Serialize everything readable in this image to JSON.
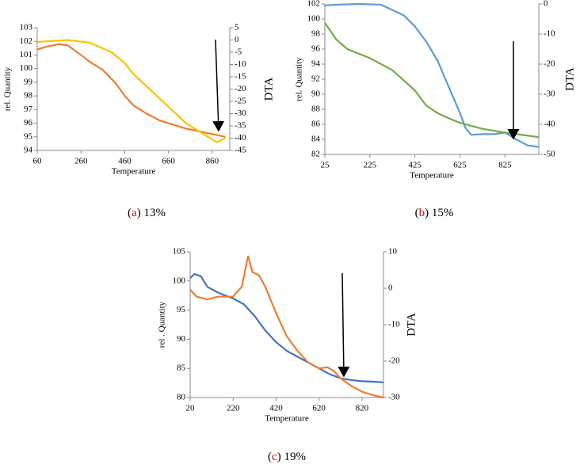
{
  "chart_data": [
    {
      "type": "line",
      "caption": [
        "(",
        "a",
        ") 13%"
      ],
      "xlabel": "Temperature",
      "ylabel": "rel. Quantity",
      "y2label": "DTA",
      "xlim": [
        60,
        940
      ],
      "xticks": [
        60,
        260,
        460,
        660,
        860
      ],
      "ylim": [
        94,
        103
      ],
      "yticks": [
        94,
        95,
        96,
        97,
        98,
        99,
        100,
        101,
        102,
        103
      ],
      "y2lim": [
        -45,
        5
      ],
      "y2ticks": [
        5,
        0,
        -5,
        -10,
        -15,
        -20,
        -25,
        -30,
        -35,
        -40,
        -45
      ],
      "series": [
        {
          "color": "#ed7d31",
          "x": [
            60,
            100,
            160,
            200,
            260,
            300,
            360,
            420,
            460,
            500,
            560,
            620,
            680,
            740,
            800,
            860,
            920
          ],
          "values": [
            101.4,
            101.6,
            101.8,
            101.7,
            101.0,
            100.5,
            99.9,
            98.9,
            98.0,
            97.3,
            96.7,
            96.2,
            95.9,
            95.6,
            95.4,
            95.2,
            95.0
          ]
        },
        {
          "color": "#ffc000",
          "axis": "y2",
          "x": [
            60,
            200,
            300,
            400,
            460,
            500,
            560,
            660,
            740,
            880,
            920
          ],
          "values": [
            -0.8,
            0,
            -1.1,
            -5,
            -9.4,
            -13.9,
            -18.9,
            -27.2,
            -33.9,
            -41.7,
            -40
          ]
        }
      ]
    },
    {
      "type": "line",
      "caption": [
        "(",
        "b",
        ") 15%"
      ],
      "xlabel": "Temperature",
      "ylabel": "rel. Quantity",
      "y2label": "DTA",
      "xlim": [
        25,
        975
      ],
      "xticks": [
        25,
        225,
        425,
        625,
        825
      ],
      "ylim": [
        82,
        102
      ],
      "yticks": [
        82,
        84,
        86,
        88,
        90,
        92,
        94,
        96,
        98,
        100,
        102
      ],
      "y2lim": [
        -50,
        0
      ],
      "y2ticks": [
        0,
        -10,
        -20,
        -30,
        -40,
        -50
      ],
      "series": [
        {
          "color": "#5b9bd5",
          "x": [
            25,
            75,
            175,
            275,
            375,
            425,
            475,
            525,
            575,
            625,
            650,
            675,
            725,
            775,
            825,
            875,
            925,
            975
          ],
          "values": [
            101.8,
            101.9,
            102,
            101.9,
            100.5,
            99,
            97,
            94.5,
            91,
            87.5,
            85.5,
            84.6,
            84.7,
            84.7,
            84.9,
            84,
            83.2,
            83
          ]
        },
        {
          "color": "#70ad47",
          "axis": "y2",
          "x": [
            25,
            75,
            125,
            225,
            325,
            425,
            475,
            525,
            575,
            625,
            725,
            825,
            925,
            975
          ],
          "values": [
            -6.25,
            -11.75,
            -15,
            -18,
            -22,
            -28.75,
            -33.75,
            -36.25,
            -38,
            -39.5,
            -41.5,
            -42.75,
            -43.75,
            -44.25
          ]
        }
      ]
    },
    {
      "type": "line",
      "caption": [
        "(",
        "c",
        ") 19%"
      ],
      "xlabel": "Temperature",
      "ylabel": "rel . Quantity",
      "y2label": "DTA",
      "xlim": [
        20,
        920
      ],
      "xticks": [
        20,
        220,
        420,
        620,
        820
      ],
      "ylim": [
        80,
        105
      ],
      "yticks": [
        80,
        85,
        90,
        95,
        100,
        105
      ],
      "y2lim": [
        -30,
        10
      ],
      "y2ticks": [
        10,
        0,
        -10,
        -20,
        -30
      ],
      "series": [
        {
          "color": "#4472c4",
          "x": [
            20,
            40,
            70,
            100,
            150,
            220,
            270,
            320,
            370,
            420,
            470,
            520,
            570,
            620,
            670,
            720,
            770,
            820,
            880,
            920
          ],
          "values": [
            100.5,
            101.2,
            100.8,
            99,
            98,
            97,
            96,
            94,
            91.5,
            89.5,
            88,
            87,
            86,
            85,
            84,
            83.3,
            83,
            82.8,
            82.7,
            82.6
          ]
        },
        {
          "color": "#ed7d31",
          "axis": "y2",
          "x": [
            20,
            50,
            100,
            150,
            220,
            260,
            290,
            310,
            340,
            370,
            420,
            470,
            520,
            570,
            620,
            660,
            690,
            720,
            770,
            820,
            880,
            920
          ],
          "values": [
            -0.4,
            -2.3,
            -3.1,
            -2.3,
            -2.3,
            0.4,
            8.9,
            4.4,
            3.6,
            0.4,
            -6.8,
            -13.2,
            -17.2,
            -20.4,
            -22,
            -21.7,
            -22.8,
            -24.7,
            -26.8,
            -28.4,
            -29.5,
            -30
          ]
        }
      ]
    }
  ]
}
